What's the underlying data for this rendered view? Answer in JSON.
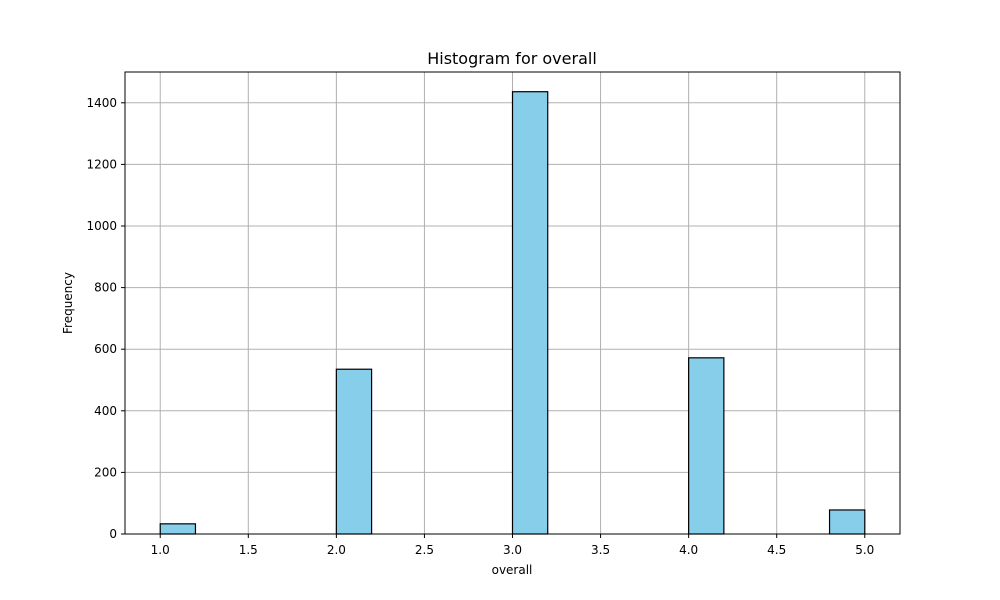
{
  "chart_data": {
    "type": "bar",
    "title": "Histogram for overall",
    "xlabel": "overall",
    "ylabel": "Frequency",
    "xlim": [
      0.8,
      5.2
    ],
    "ylim": [
      0,
      1500
    ],
    "xticks": [
      "1.0",
      "1.5",
      "2.0",
      "2.5",
      "3.0",
      "3.5",
      "4.0",
      "4.5",
      "5.0"
    ],
    "yticks": [
      "0",
      "200",
      "400",
      "600",
      "800",
      "1000",
      "1200",
      "1400"
    ],
    "grid": true,
    "bar_color": "#87CEEB",
    "edge_color": "#000000",
    "bins": [
      {
        "start": 1.0,
        "end": 1.2,
        "value": 33
      },
      {
        "start": 2.0,
        "end": 2.2,
        "value": 535
      },
      {
        "start": 3.0,
        "end": 3.2,
        "value": 1436
      },
      {
        "start": 4.0,
        "end": 4.2,
        "value": 572
      },
      {
        "start": 4.8,
        "end": 5.0,
        "value": 78
      }
    ]
  }
}
